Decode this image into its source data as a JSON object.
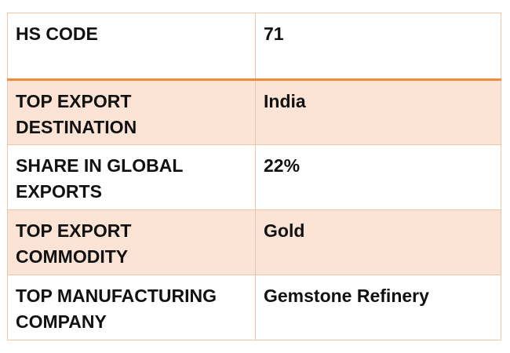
{
  "table": {
    "rows": [
      {
        "label": "HS CODE",
        "value": "71"
      },
      {
        "label": "TOP EXPORT DESTINATION",
        "value": "India"
      },
      {
        "label": "SHARE IN GLOBAL EXPORTS",
        "value": "22%"
      },
      {
        "label": "TOP EXPORT COMMODITY",
        "value": "Gold"
      },
      {
        "label": "TOP MANUFACTURING COMPANY",
        "value": "Gemstone Refinery"
      }
    ]
  },
  "colors": {
    "header_rule": "#f08a3c",
    "band_fill": "#fbe4d5",
    "border": "#f3c5a4"
  }
}
